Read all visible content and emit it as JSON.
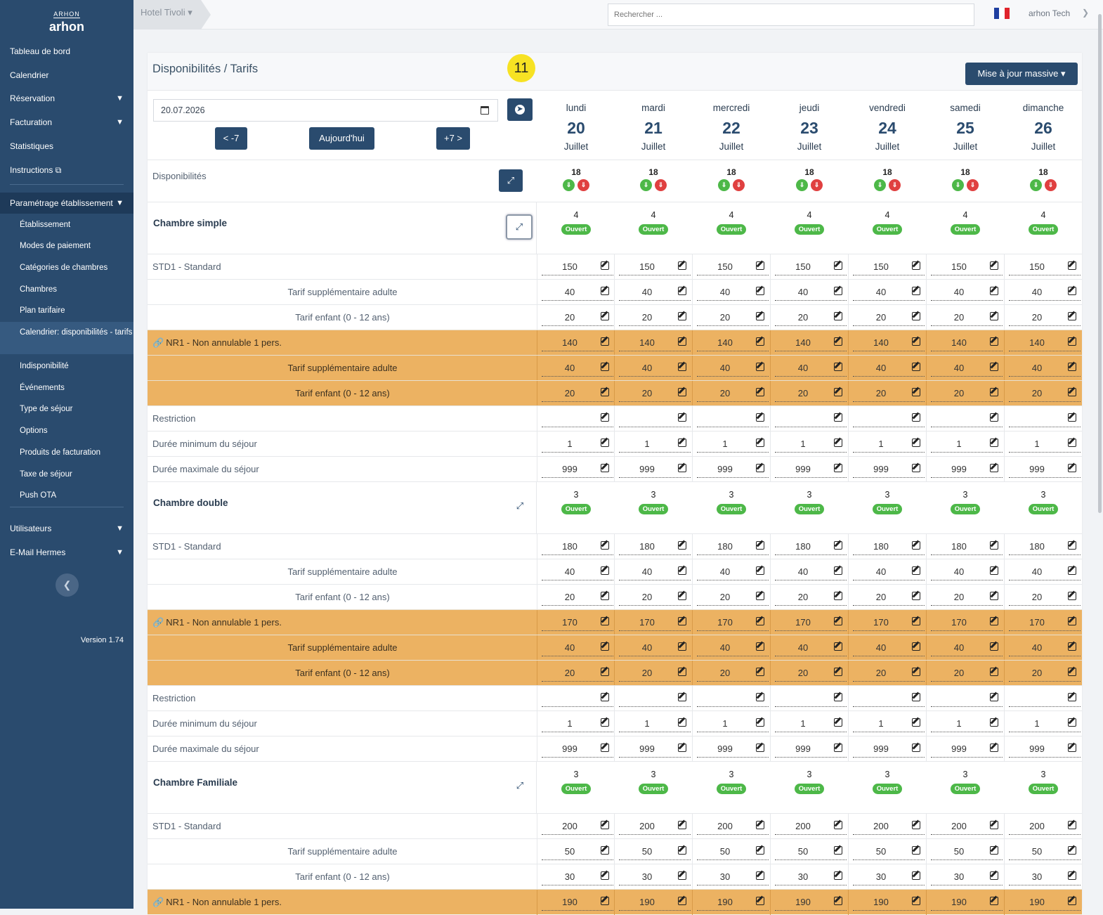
{
  "sidebar": {
    "logo_mark": "ARHON",
    "logo_name": "arhon",
    "items": [
      {
        "label": "Tableau de bord"
      },
      {
        "label": "Calendrier"
      },
      {
        "label": "Réservation"
      },
      {
        "label": "Facturation"
      },
      {
        "label": "Statistiques"
      },
      {
        "label": "Instructions"
      }
    ],
    "section": {
      "label": "Paramétrage établissement"
    },
    "sub_items": [
      {
        "label": "Établissement"
      },
      {
        "label": "Modes de paiement"
      },
      {
        "label": "Catégories de chambres"
      },
      {
        "label": "Chambres"
      },
      {
        "label": "Plan tarifaire"
      },
      {
        "label": "Calendrier: disponibilités - tarifs"
      },
      {
        "label": "Indisponibilité"
      },
      {
        "label": "Événements"
      },
      {
        "label": "Type de séjour"
      },
      {
        "label": "Options"
      },
      {
        "label": "Produits de facturation"
      },
      {
        "label": "Taxe de séjour"
      },
      {
        "label": "Push OTA"
      }
    ],
    "bottom_items": [
      {
        "label": "Utilisateurs"
      },
      {
        "label": "E-Mail Hermes"
      }
    ],
    "version": "Version 1.74"
  },
  "topbar": {
    "hotel": "Hotel Tivoli",
    "search_placeholder": "Rechercher ...",
    "user": "arhon Tech",
    "flag_colors": [
      "#1f3fa0",
      "#ffffff",
      "#e0242c"
    ]
  },
  "page": {
    "title": "Disponibilités / Tarifs",
    "badge": "11",
    "mass_update": "Mise à jour massive",
    "date_value": "20.07.2026",
    "prev_label": "< -7",
    "today_label": "Aujourd'hui",
    "next_label": "+7 >",
    "availability_label": "Disponibilités"
  },
  "days": [
    {
      "name": "lundi",
      "num": "20",
      "month": "Juillet"
    },
    {
      "name": "mardi",
      "num": "21",
      "month": "Juillet"
    },
    {
      "name": "mercredi",
      "num": "22",
      "month": "Juillet"
    },
    {
      "name": "jeudi",
      "num": "23",
      "month": "Juillet"
    },
    {
      "name": "vendredi",
      "num": "24",
      "month": "Juillet"
    },
    {
      "name": "samedi",
      "num": "25",
      "month": "Juillet"
    },
    {
      "name": "dimanche",
      "num": "26",
      "month": "Juillet"
    }
  ],
  "availability": [
    "18",
    "18",
    "18",
    "18",
    "18",
    "18",
    "18"
  ],
  "status_label": "Ouvert",
  "categories": [
    {
      "name": "Chambre simple",
      "counts": [
        "4",
        "4",
        "4",
        "4",
        "4",
        "4",
        "4"
      ],
      "rows": [
        {
          "label": "STD1 - Standard",
          "type": "base",
          "values": [
            "150",
            "150",
            "150",
            "150",
            "150",
            "150",
            "150"
          ]
        },
        {
          "label": "Tarif supplémentaire adulte",
          "type": "sub",
          "values": [
            "40",
            "40",
            "40",
            "40",
            "40",
            "40",
            "40"
          ]
        },
        {
          "label": "Tarif enfant (0 - 12 ans)",
          "type": "sub",
          "values": [
            "20",
            "20",
            "20",
            "20",
            "20",
            "20",
            "20"
          ]
        },
        {
          "label": "NR1 - Non annulable 1 pers.",
          "type": "linked",
          "values": [
            "140",
            "140",
            "140",
            "140",
            "140",
            "140",
            "140"
          ]
        },
        {
          "label": "Tarif supplémentaire adulte",
          "type": "sub-orange",
          "values": [
            "40",
            "40",
            "40",
            "40",
            "40",
            "40",
            "40"
          ]
        },
        {
          "label": "Tarif enfant (0 - 12 ans)",
          "type": "sub-orange",
          "values": [
            "20",
            "20",
            "20",
            "20",
            "20",
            "20",
            "20"
          ]
        },
        {
          "label": "Restriction",
          "type": "base",
          "values": [
            "",
            "",
            "",
            "",
            "",
            "",
            ""
          ]
        },
        {
          "label": "Durée minimum du séjour",
          "type": "base",
          "values": [
            "1",
            "1",
            "1",
            "1",
            "1",
            "1",
            "1"
          ]
        },
        {
          "label": "Durée maximale du séjour",
          "type": "base",
          "values": [
            "999",
            "999",
            "999",
            "999",
            "999",
            "999",
            "999"
          ]
        }
      ]
    },
    {
      "name": "Chambre double",
      "counts": [
        "3",
        "3",
        "3",
        "3",
        "3",
        "3",
        "3"
      ],
      "rows": [
        {
          "label": "STD1 - Standard",
          "type": "base",
          "values": [
            "180",
            "180",
            "180",
            "180",
            "180",
            "180",
            "180"
          ]
        },
        {
          "label": "Tarif supplémentaire adulte",
          "type": "sub",
          "values": [
            "40",
            "40",
            "40",
            "40",
            "40",
            "40",
            "40"
          ]
        },
        {
          "label": "Tarif enfant (0 - 12 ans)",
          "type": "sub",
          "values": [
            "20",
            "20",
            "20",
            "20",
            "20",
            "20",
            "20"
          ]
        },
        {
          "label": "NR1 - Non annulable 1 pers.",
          "type": "linked",
          "values": [
            "170",
            "170",
            "170",
            "170",
            "170",
            "170",
            "170"
          ]
        },
        {
          "label": "Tarif supplémentaire adulte",
          "type": "sub-orange",
          "values": [
            "40",
            "40",
            "40",
            "40",
            "40",
            "40",
            "40"
          ]
        },
        {
          "label": "Tarif enfant (0 - 12 ans)",
          "type": "sub-orange",
          "values": [
            "20",
            "20",
            "20",
            "20",
            "20",
            "20",
            "20"
          ]
        },
        {
          "label": "Restriction",
          "type": "base",
          "values": [
            "",
            "",
            "",
            "",
            "",
            "",
            ""
          ]
        },
        {
          "label": "Durée minimum du séjour",
          "type": "base",
          "values": [
            "1",
            "1",
            "1",
            "1",
            "1",
            "1",
            "1"
          ]
        },
        {
          "label": "Durée maximale du séjour",
          "type": "base",
          "values": [
            "999",
            "999",
            "999",
            "999",
            "999",
            "999",
            "999"
          ]
        }
      ]
    },
    {
      "name": "Chambre Familiale",
      "counts": [
        "3",
        "3",
        "3",
        "3",
        "3",
        "3",
        "3"
      ],
      "rows": [
        {
          "label": "STD1 - Standard",
          "type": "base",
          "values": [
            "200",
            "200",
            "200",
            "200",
            "200",
            "200",
            "200"
          ]
        },
        {
          "label": "Tarif supplémentaire adulte",
          "type": "sub",
          "values": [
            "50",
            "50",
            "50",
            "50",
            "50",
            "50",
            "50"
          ]
        },
        {
          "label": "Tarif enfant (0 - 12 ans)",
          "type": "sub",
          "values": [
            "30",
            "30",
            "30",
            "30",
            "30",
            "30",
            "30"
          ]
        },
        {
          "label": "NR1 - Non annulable 1 pers.",
          "type": "linked",
          "values": [
            "190",
            "190",
            "190",
            "190",
            "190",
            "190",
            "190"
          ]
        }
      ]
    }
  ]
}
